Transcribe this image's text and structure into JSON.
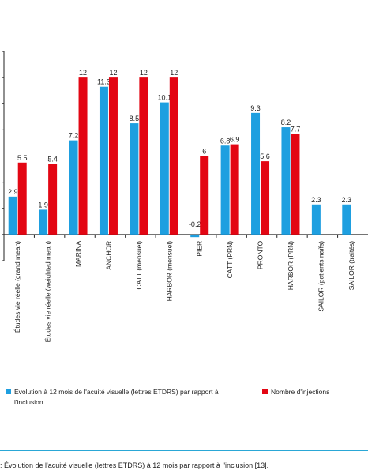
{
  "chart_data": {
    "type": "bar",
    "categories": [
      "Études vie réelle (grand mean)",
      "Études vie réelle (weighted mean)",
      "MARINA",
      "ANCHOR",
      "CATT (mensuel)",
      "HARBOR (mensuel)",
      "PIER",
      "CATT (PRN)",
      "PRONTO",
      "HARBOR (PRN)",
      "SAILOR (patients naïfs)",
      "SAILOR (traités)"
    ],
    "series": [
      {
        "name": "Évolution à 12 mois de l'acuité visuelle (lettres ETDRS) par rapport à l'inclusion",
        "color": "#1e9fe0",
        "values": [
          2.9,
          1.9,
          7.2,
          11.3,
          8.5,
          10.1,
          -0.2,
          6.8,
          9.3,
          8.2,
          2.3,
          2.3
        ],
        "labels": [
          "2.9",
          "1.9",
          "7.2",
          "11.3",
          "8.5",
          "10.1",
          "-0.2",
          "6.8",
          "9.3",
          "8.2",
          "2.3",
          "2.3"
        ]
      },
      {
        "name": "Nombre d'injections",
        "color": "#e30613",
        "values": [
          5.5,
          5.4,
          12,
          12,
          12,
          12,
          6,
          6.9,
          5.6,
          7.7,
          null,
          null
        ],
        "labels": [
          "5.5",
          "5.4",
          "12",
          "12",
          "12",
          "12",
          "6",
          "6.9",
          "5.6",
          "7.7",
          "",
          ""
        ]
      }
    ],
    "ylim": [
      -2,
      14
    ],
    "grid": false,
    "legend_position": "bottom"
  },
  "legend": {
    "blue_label": "Évolution à 12 mois de l'acuité visuelle (lettres ETDRS) par rapport à l'inclusion",
    "red_label": "Nombre d'injections"
  },
  "caption": ": Évolution de l'acuité visuelle (lettres ETDRS) à 12 mois par rapport à l'inclusion [13]."
}
